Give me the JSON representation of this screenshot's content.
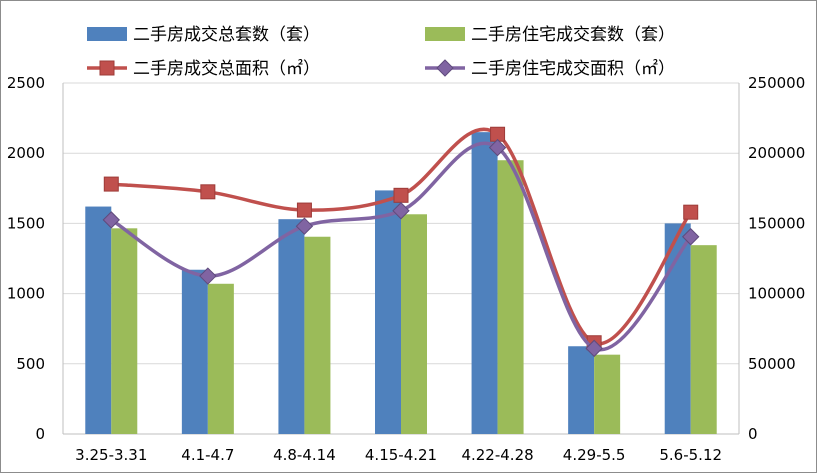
{
  "chart_data": {
    "type": "bar",
    "categories": [
      "3.25-3.31",
      "4.1-4.7",
      "4.8-4.14",
      "4.15-4.21",
      "4.22-4.28",
      "4.29-5.5",
      "5.6-5.12"
    ],
    "series": [
      {
        "name": "二手房成交总套数（套）",
        "type": "bar",
        "axis": "left",
        "color": "#4f81bd",
        "values": [
          1620,
          1170,
          1530,
          1735,
          2150,
          625,
          1500
        ]
      },
      {
        "name": "二手房住宅成交套数（套）",
        "type": "bar",
        "axis": "left",
        "color": "#9bbb59",
        "values": [
          1465,
          1070,
          1405,
          1565,
          1950,
          565,
          1345
        ]
      },
      {
        "name": "二手房成交总面积（㎡）",
        "type": "line",
        "axis": "right",
        "color": "#c0504d",
        "marker": "square",
        "values": [
          178000,
          172500,
          159500,
          170000,
          213500,
          65000,
          158000
        ]
      },
      {
        "name": "二手房住宅成交面积（㎡）",
        "type": "line",
        "axis": "right",
        "color": "#8064a2",
        "marker": "diamond",
        "values": [
          152500,
          112500,
          148000,
          159000,
          204000,
          61000,
          140500
        ]
      }
    ],
    "y_left": {
      "min": 0,
      "max": 2500,
      "ticks": [
        "0",
        "500",
        "1000",
        "1500",
        "2000",
        "2500"
      ]
    },
    "y_right": {
      "min": 0,
      "max": 250000,
      "ticks": [
        "0",
        "50000",
        "100000",
        "150000",
        "200000",
        "250000"
      ]
    },
    "grid": true,
    "legend_position": "top"
  }
}
